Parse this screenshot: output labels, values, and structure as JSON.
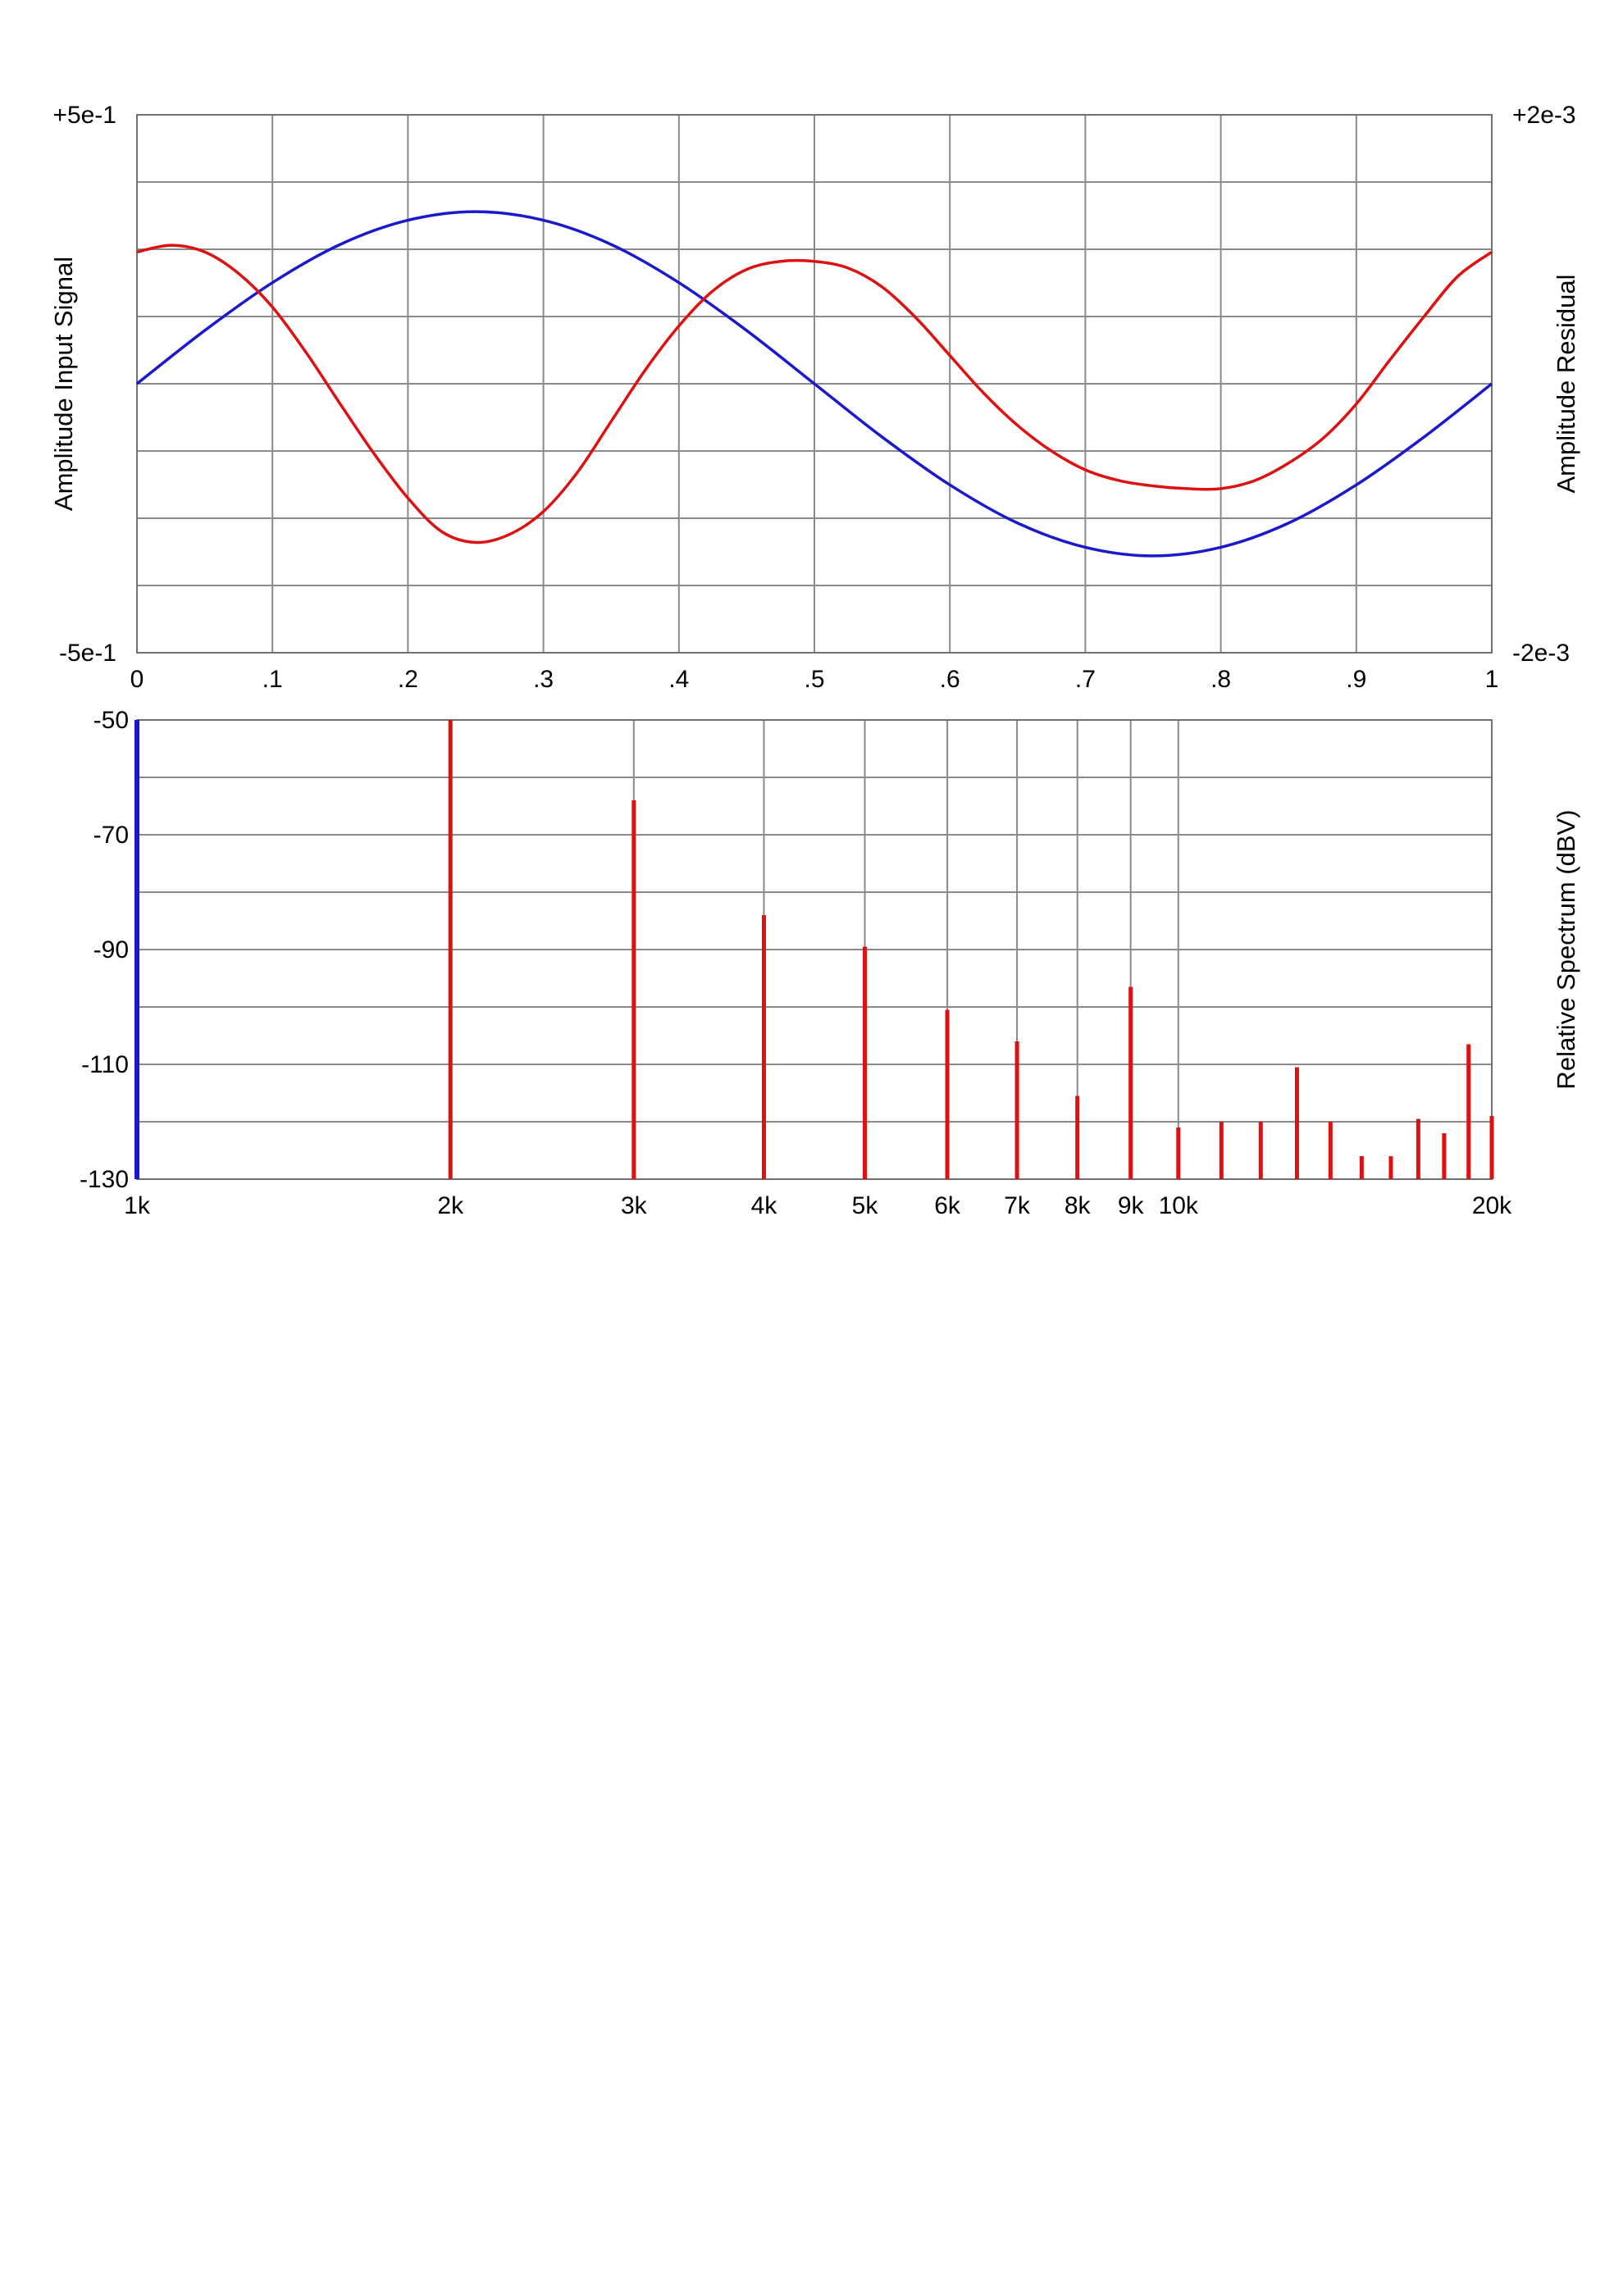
{
  "chart_data": [
    {
      "type": "line",
      "title": "",
      "xlabel": "",
      "ylabel_left": "Amplitude Input Signal",
      "ylabel_right": "Amplitude Residual",
      "xlim": [
        0,
        1
      ],
      "ylim_left": [
        -0.5,
        0.5
      ],
      "ylim_right": [
        -0.002,
        0.002
      ],
      "x_tick_labels": [
        "0",
        ".1",
        ".2",
        ".3",
        ".4",
        ".5",
        ".6",
        ".7",
        ".8",
        ".9",
        "1"
      ],
      "y_left_tick_labels": {
        "max": "+5e-1",
        "min": "-5e-1"
      },
      "y_right_tick_labels": {
        "max": "+2e-3",
        "min": "-2e-3"
      },
      "grid": {
        "x_divisions": 10,
        "y_divisions": 8
      },
      "series": [
        {
          "axis": "left",
          "color": "#1a1acc",
          "x": [
            0,
            0.05,
            0.1,
            0.15,
            0.2,
            0.25,
            0.3,
            0.35,
            0.4,
            0.45,
            0.5,
            0.55,
            0.6,
            0.65,
            0.7,
            0.75,
            0.8,
            0.85,
            0.9,
            0.95,
            1
          ],
          "y": [
            0,
            0.099,
            0.188,
            0.259,
            0.304,
            0.32,
            0.304,
            0.259,
            0.188,
            0.099,
            0,
            -0.099,
            -0.188,
            -0.259,
            -0.304,
            -0.32,
            -0.304,
            -0.259,
            -0.188,
            -0.099,
            0
          ]
        },
        {
          "axis": "right",
          "color": "#dd1111",
          "x": [
            0,
            0.025,
            0.05,
            0.075,
            0.1,
            0.125,
            0.15,
            0.175,
            0.2,
            0.225,
            0.25,
            0.275,
            0.3,
            0.325,
            0.35,
            0.375,
            0.4,
            0.425,
            0.45,
            0.475,
            0.5,
            0.525,
            0.55,
            0.575,
            0.6,
            0.625,
            0.65,
            0.675,
            0.7,
            0.725,
            0.75,
            0.775,
            0.8,
            0.825,
            0.85,
            0.875,
            0.9,
            0.925,
            0.95,
            0.975,
            1
          ],
          "y": [
            0.00098,
            0.00103,
            0.00098,
            0.00082,
            0.00057,
            0.00023,
            -0.00015,
            -0.00052,
            -0.00085,
            -0.0011,
            -0.00118,
            -0.00112,
            -0.00095,
            -0.00066,
            -0.00028,
            0.0001,
            0.00043,
            0.00069,
            0.00085,
            0.00091,
            0.00091,
            0.00086,
            0.00072,
            0.00049,
            0.00021,
            -7e-05,
            -0.00031,
            -0.0005,
            -0.00064,
            -0.00072,
            -0.00076,
            -0.00078,
            -0.00078,
            -0.00072,
            -0.00059,
            -0.00041,
            -0.00015,
            0.00018,
            0.0005,
            0.0008,
            0.00098
          ]
        }
      ]
    },
    {
      "type": "bar",
      "title": "",
      "xlabel": "",
      "ylabel_right": "Relative Spectrum (dBV)",
      "x_scale": "log",
      "xlim": [
        1000,
        20000
      ],
      "ylim": [
        -130,
        -50
      ],
      "y_tick_labels": [
        "-50",
        "-70",
        "-90",
        "-110",
        "-130"
      ],
      "x_tick_labels": [
        "1k",
        "2k",
        "3k",
        "4k",
        "5k",
        "6k",
        "7k",
        "8k",
        "9k",
        "10k",
        "20k"
      ],
      "fundamental": {
        "x": 1000,
        "color": "#1a1acc"
      },
      "bar_color": "#dd1111",
      "x": [
        2000,
        3000,
        4000,
        5000,
        6000,
        7000,
        8000,
        9000,
        10000,
        11000,
        12000,
        13000,
        14000,
        15000,
        16000,
        17000,
        18000,
        19000,
        20000
      ],
      "values": [
        -50,
        -64,
        -84,
        -89.5,
        -100.5,
        -106,
        -115.5,
        -96.5,
        -121,
        -120,
        -120,
        -110.5,
        -120,
        -126,
        -126,
        -119.5,
        -122,
        -106.5,
        -119
      ]
    }
  ]
}
